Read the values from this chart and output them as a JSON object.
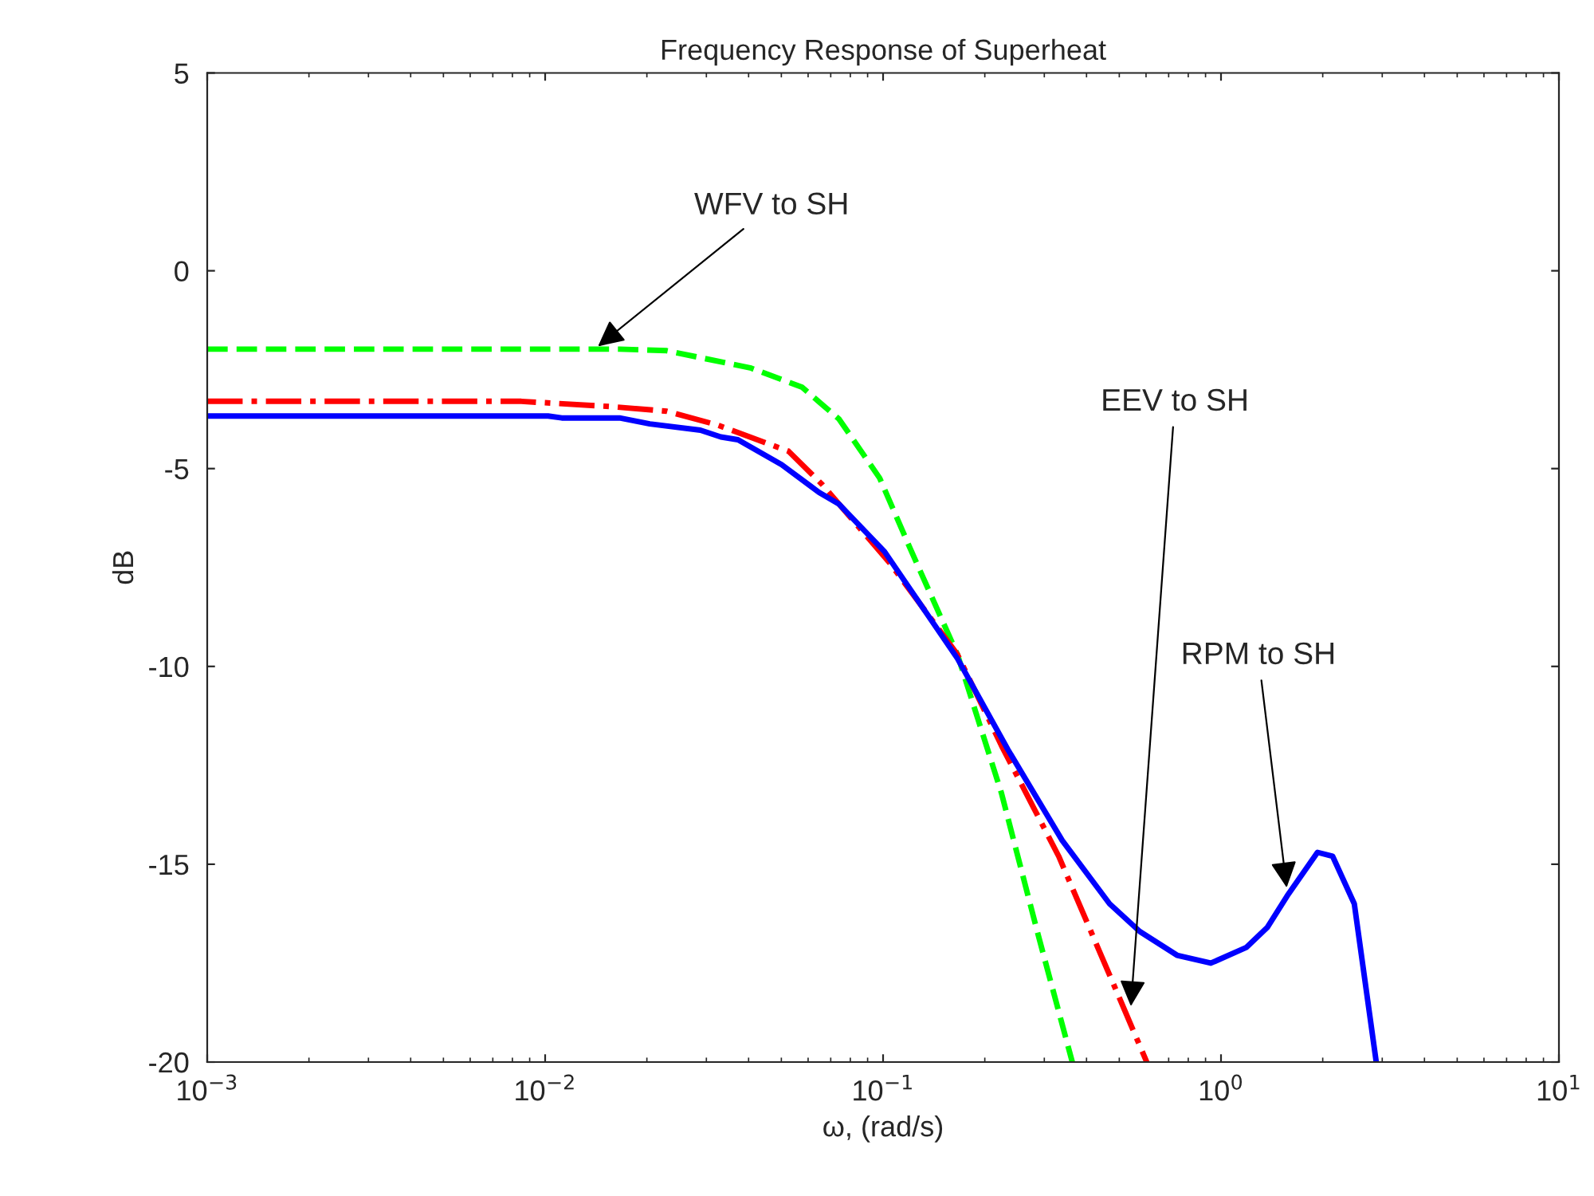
{
  "chart_data": {
    "type": "line",
    "title": "Frequency Response of Superheat",
    "xlabel": "ω, (rad/s)",
    "ylabel": "dB",
    "log": "x",
    "grid": false,
    "marker": "none",
    "xlim": [
      0.001,
      10
    ],
    "xticks": [
      {
        "value": 0.001,
        "label": "10$^{−3}$"
      },
      {
        "value": 0.01,
        "label": "10$^{−2}$"
      },
      {
        "value": 0.1,
        "label": "10$^{−1}$"
      },
      {
        "value": 1,
        "label": "10$^{0}$"
      },
      {
        "value": 10,
        "label": "10$^{1}$"
      }
    ],
    "ylim": [
      -20,
      5
    ],
    "yticks": [
      5,
      0,
      -5,
      -10,
      -15,
      -20
    ],
    "series": [
      {
        "color": "#00ff00",
        "line_style": "dashed",
        "x": [
          0.001,
          0.0166,
          0.0229,
          0.0407,
          0.0575,
          0.0741,
          0.0977,
          0.12,
          0.166,
          0.224,
          0.288,
          0.363
        ],
        "values": [
          -1.98,
          -1.98,
          -2.02,
          -2.46,
          -2.94,
          -3.75,
          -5.24,
          -7.0,
          -9.7,
          -13.2,
          -16.8,
          -20
        ]
      },
      {
        "color": "#ff0000",
        "line_style": "dashdot",
        "x": [
          0.001,
          0.0085,
          0.0155,
          0.0229,
          0.0324,
          0.0525,
          0.066,
          0.105,
          0.166,
          0.224,
          0.331,
          0.479,
          0.603
        ],
        "values": [
          -3.3,
          -3.3,
          -3.43,
          -3.55,
          -3.9,
          -4.56,
          -5.4,
          -7.4,
          -9.7,
          -12.0,
          -14.8,
          -18.0,
          -20
        ]
      },
      {
        "color": "#0000ff",
        "line_style": "solid",
        "x": [
          0.001,
          0.0102,
          0.0112,
          0.0166,
          0.0204,
          0.0288,
          0.0331,
          0.0372,
          0.0501,
          0.0646,
          0.0741,
          0.101,
          0.166,
          0.234,
          0.339,
          0.468,
          0.575,
          0.741,
          0.933,
          1.19,
          1.37,
          1.57,
          1.93,
          2.14,
          2.48,
          2.88
        ],
        "values": [
          -3.67,
          -3.67,
          -3.72,
          -3.72,
          -3.87,
          -4.03,
          -4.2,
          -4.27,
          -4.9,
          -5.6,
          -5.9,
          -7.1,
          -9.8,
          -12.1,
          -14.4,
          -16.0,
          -16.7,
          -17.3,
          -17.5,
          -17.1,
          -16.6,
          -15.8,
          -14.7,
          -14.8,
          -16.0,
          -20
        ]
      }
    ],
    "annotations": [
      {
        "text": "WFV to SH",
        "x": 0.014,
        "y": -1.98
      },
      {
        "text": "EEV to SH",
        "x": 0.54,
        "y": -18.7
      },
      {
        "text": "RPM to SH",
        "x": 1.57,
        "y": -15.7
      }
    ]
  }
}
